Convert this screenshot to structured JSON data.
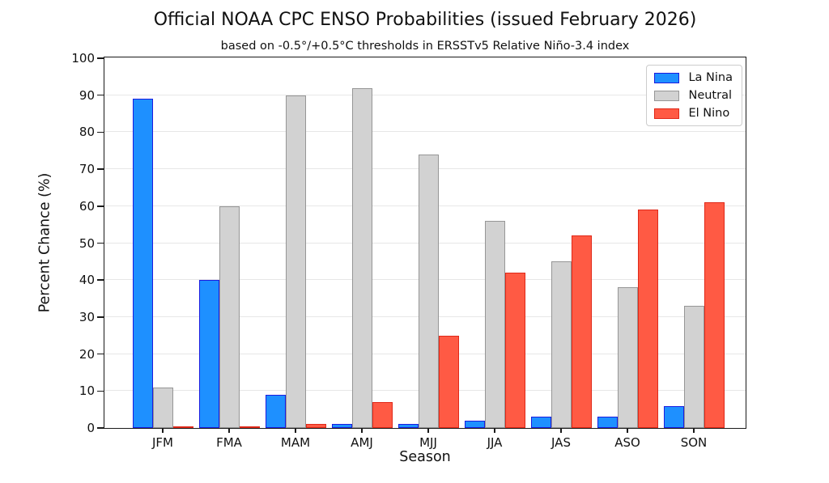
{
  "chart_data": {
    "type": "bar",
    "title": "Official NOAA CPC ENSO Probabilities (issued February 2026)",
    "subtitle": "based on -0.5°/+0.5°C thresholds in ERSSTv5 Relative Niño-3.4 index",
    "xlabel": "Season",
    "ylabel": "Percent Chance (%)",
    "ylim": [
      0,
      100
    ],
    "yticks": [
      0,
      10,
      20,
      30,
      40,
      50,
      60,
      70,
      80,
      90,
      100
    ],
    "grid": true,
    "legend_position": "upper right",
    "categories": [
      "JFM",
      "FMA",
      "MAM",
      "AMJ",
      "MJJ",
      "JJA",
      "JAS",
      "ASO",
      "SON"
    ],
    "series": [
      {
        "name": "La Nina",
        "fill": "#1E90FF",
        "edge": "#1C1CE0",
        "values": [
          89,
          40,
          9,
          1,
          1,
          2,
          3,
          3,
          6
        ]
      },
      {
        "name": "Neutral",
        "fill": "#D2D2D2",
        "edge": "#969696",
        "values": [
          11,
          60,
          90,
          92,
          74,
          56,
          45,
          38,
          33
        ]
      },
      {
        "name": "El Nino",
        "fill": "#FF5A44",
        "edge": "#E02818",
        "values": [
          0,
          0,
          1,
          7,
          25,
          42,
          52,
          59,
          61
        ]
      }
    ]
  }
}
